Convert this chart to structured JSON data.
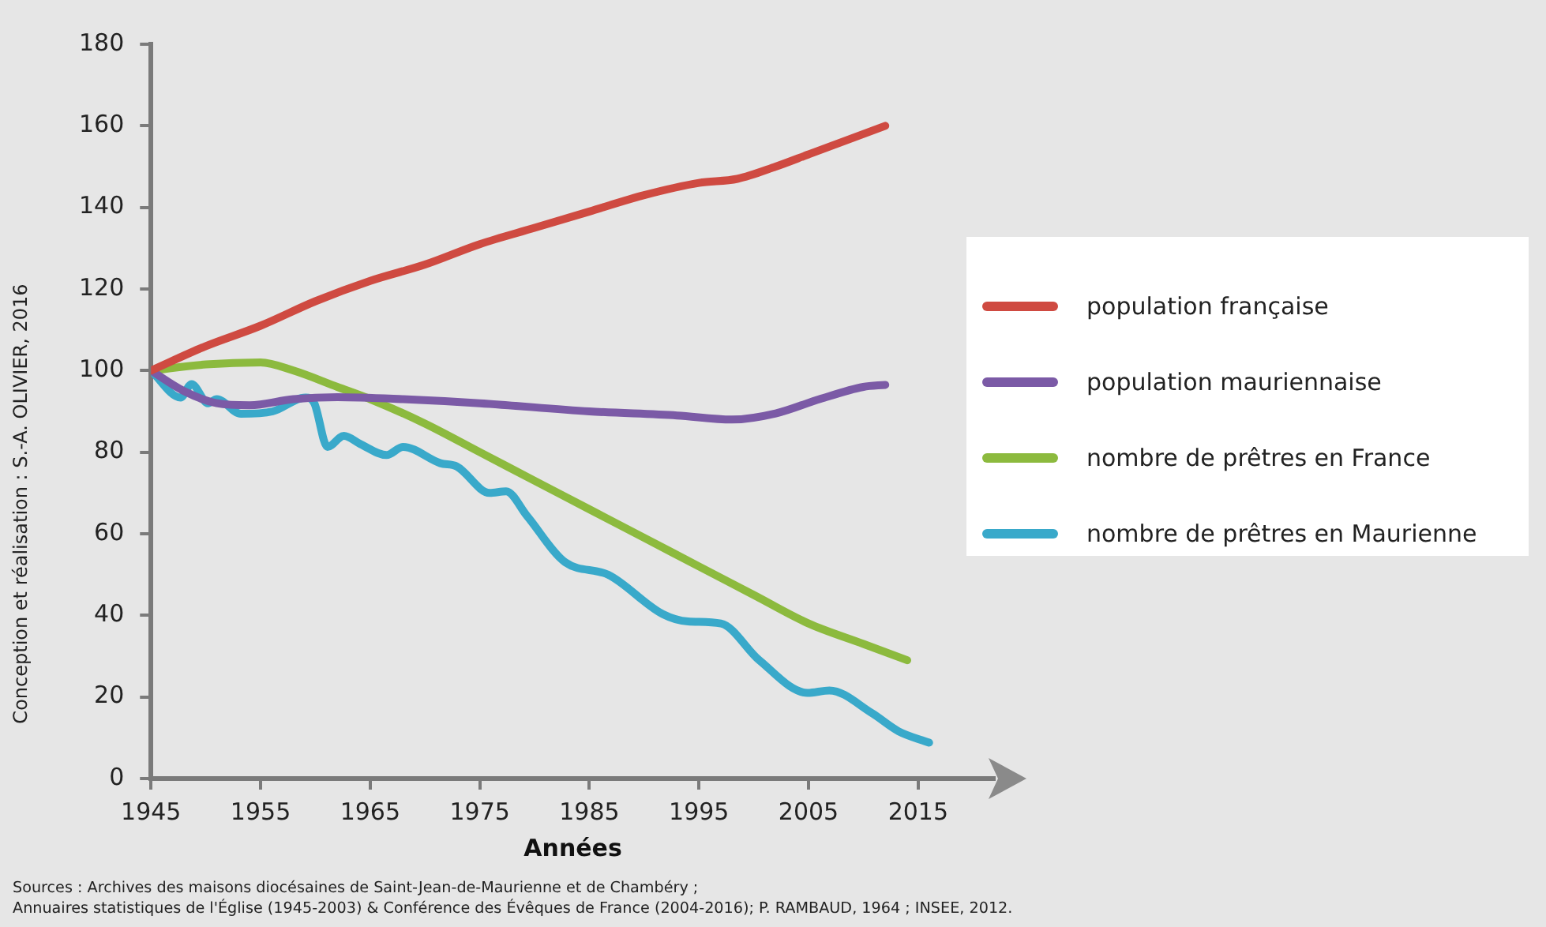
{
  "chart_data": {
    "type": "line",
    "xlabel": "Années",
    "xlim": [
      1945,
      2022
    ],
    "xticks": [
      1945,
      1955,
      1965,
      1975,
      1985,
      1995,
      2005,
      2015
    ],
    "ylim": [
      0,
      180
    ],
    "yticks": [
      0,
      20,
      40,
      60,
      80,
      100,
      120,
      140,
      160,
      180
    ],
    "grid": false,
    "legend": "right",
    "marker": "none",
    "line_style": "solid",
    "annotations": [
      "Conception et réalisation : S.-A. OLIVIER, 2016",
      "Sources : Archives des maisons diocésaines de Saint-Jean-de-Maurienne et de Chambéry ;",
      "Annuaires statistiques de l'Église (1945-2003) & Conférence des Évêques de France (2004-2016); P. RAMBAUD, 1964 ; INSEE, 2012."
    ],
    "series": [
      {
        "name": "population française",
        "color": "#cf4a41",
        "x": [
          1945,
          1950,
          1955,
          1960,
          1965,
          1970,
          1975,
          1980,
          1985,
          1990,
          1995,
          1998.5,
          2002,
          2005,
          2009,
          2012
        ],
        "values": [
          100,
          106,
          111,
          117,
          122,
          126,
          131,
          135,
          139,
          143,
          146,
          147,
          150,
          153,
          157,
          160
        ]
      },
      {
        "name": "population mauriennaise",
        "color": "#7b5aa6",
        "x": [
          1945,
          1948,
          1951,
          1954,
          1958,
          1962,
          1968,
          1975,
          1985,
          1993,
          1998,
          2002,
          2006,
          2010,
          2012
        ],
        "values": [
          100,
          95,
          92,
          91.5,
          93,
          93.5,
          93,
          92,
          90,
          89,
          88,
          89.5,
          93,
          96,
          96.5
        ]
      },
      {
        "name": "nombre de prêtres en France",
        "color": "#8cba3e",
        "x": [
          1945,
          1950,
          1955,
          1958,
          1962,
          1965,
          1970,
          1975,
          1980,
          1985,
          1990,
          1995,
          2000,
          2005,
          2010,
          2014
        ],
        "values": [
          100,
          101.5,
          102,
          100,
          96,
          93,
          87,
          80,
          73,
          66,
          59,
          52,
          45,
          38,
          33,
          29
        ]
      },
      {
        "name": "nombre de prêtres en Maurienne",
        "color": "#39a9ca",
        "x": [
          1945,
          1947.7,
          1948.7,
          1950.2,
          1951,
          1953.2,
          1956.1,
          1959.1,
          1959.9,
          1961.1,
          1962.6,
          1964.1,
          1966.5,
          1968,
          1971.4,
          1972.9,
          1975.9,
          1977.4,
          1979.3,
          1982.8,
          1986.7,
          1991.7,
          1994,
          1997,
          2000.5,
          2004.9,
          2006.9,
          2010.8,
          2013.2,
          2016
        ],
        "values": [
          100,
          93.4,
          96.7,
          92,
          93,
          89.4,
          90,
          93.4,
          92,
          81.3,
          84,
          82,
          79.3,
          81.3,
          77.3,
          76.5,
          70,
          70.4,
          64.4,
          53,
          50,
          40.3,
          38.5,
          38,
          29,
          21,
          21.6,
          16,
          11.6,
          8.8
        ]
      }
    ]
  }
}
